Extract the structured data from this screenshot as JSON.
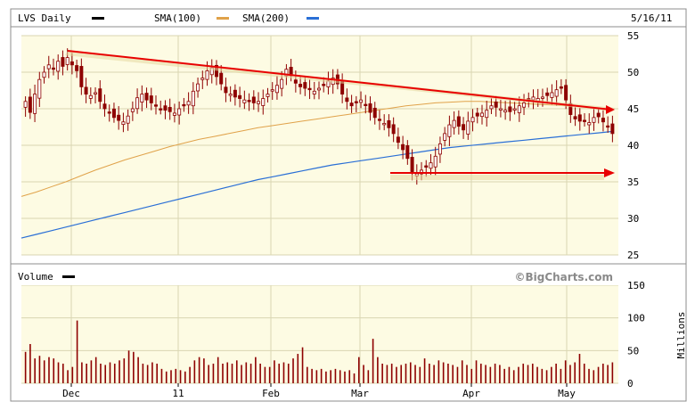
{
  "header": {
    "symbol": "LVS Daily",
    "sma100_label": "SMA(100)",
    "sma200_label": "SMA(200)",
    "date": "5/16/11"
  },
  "volume_panel": {
    "label": "Volume",
    "watermark": "©BigCharts.com",
    "unit_label": "Millions"
  },
  "colors": {
    "panel_bg": "#fdfbe3",
    "grid": "#d9d6b2",
    "candle": "#8e0000",
    "sma100": "#e0a24a",
    "sma200": "#2a6fd6",
    "trend": "#e80000",
    "volume": "#8e0000"
  },
  "chart_data": [
    {
      "type": "candlestick",
      "title": "LVS Daily",
      "x_tick_labels": [
        "Dec",
        "11",
        "Feb",
        "Mar",
        "Apr",
        "May"
      ],
      "ylim": [
        25,
        55
      ],
      "y_ticks": [
        25,
        30,
        35,
        40,
        45,
        50,
        55
      ],
      "grid": true,
      "closes": [
        46,
        44.5,
        47,
        49,
        50,
        51,
        50.5,
        51.5,
        50.8,
        52,
        51,
        50.2,
        48,
        47,
        46.8,
        47.2,
        46,
        45,
        44.5,
        43.8,
        43.4,
        43.2,
        44,
        45,
        46.5,
        47,
        46.2,
        45.8,
        45.5,
        45,
        44.8,
        44.6,
        44.4,
        45,
        45.4,
        46,
        47.4,
        48.4,
        49.2,
        50.2,
        50.6,
        49.4,
        48.4,
        47.2,
        47,
        46.6,
        46.4,
        46.2,
        46,
        45.8,
        46,
        46.4,
        47,
        47.6,
        48.2,
        49,
        50.4,
        49.5,
        48.5,
        48,
        47.8,
        47.6,
        47.4,
        47.8,
        48.3,
        48.8,
        49.2,
        48.4,
        47,
        46,
        45.4,
        45.8,
        46.2,
        45.6,
        44.5,
        43.8,
        43.4,
        43,
        42.4,
        41.6,
        40.4,
        39.4,
        38.2,
        36.4,
        36.1,
        36.6,
        37,
        37.6,
        38.5,
        40.2,
        41.6,
        42.8,
        43.4,
        42.6,
        42.1,
        43.3,
        43.8,
        44,
        44.4,
        44.8,
        45.4,
        45.2,
        45,
        44.8,
        44.6,
        45,
        45.4,
        45.8,
        46.2,
        46.6,
        46.4,
        46.6,
        46.8,
        47.2,
        47.6,
        47.8,
        46.2,
        44.2,
        43.6,
        43.3,
        43.4,
        43.1,
        43.8,
        43.9,
        43.2,
        42.6,
        41.6
      ],
      "series": [
        {
          "name": "SMA(100)",
          "values": [
            33,
            33.6,
            34.3,
            35,
            35.8,
            36.6,
            37.3,
            38,
            38.6,
            39.2,
            39.8,
            40.3,
            40.8,
            41.2,
            41.6,
            42,
            42.4,
            42.7,
            43,
            43.3,
            43.6,
            43.9,
            44.2,
            44.5,
            44.8,
            45.1,
            45.4,
            45.6,
            45.8,
            45.9,
            46,
            46,
            45.9,
            45.8,
            45.7,
            45.6,
            45.5,
            45.4,
            45.3,
            45.1,
            44.9
          ]
        },
        {
          "name": "SMA(200)",
          "values": [
            27.3,
            27.8,
            28.3,
            28.8,
            29.3,
            29.8,
            30.3,
            30.8,
            31.3,
            31.8,
            32.3,
            32.8,
            33.3,
            33.8,
            34.3,
            34.8,
            35.3,
            35.7,
            36.1,
            36.5,
            36.9,
            37.3,
            37.6,
            37.9,
            38.2,
            38.5,
            38.8,
            39.1,
            39.4,
            39.7,
            39.9,
            40.1,
            40.3,
            40.5,
            40.7,
            40.9,
            41.1,
            41.3,
            41.5,
            41.7,
            41.9
          ]
        }
      ]
    },
    {
      "type": "bar",
      "title": "Volume",
      "ylabel": "Millions",
      "ylim": [
        0,
        150
      ],
      "y_ticks": [
        0,
        50,
        100,
        150
      ],
      "values": [
        48,
        60,
        38,
        42,
        35,
        40,
        38,
        32,
        30,
        20,
        25,
        96,
        32,
        30,
        35,
        40,
        30,
        28,
        32,
        30,
        35,
        38,
        50,
        48,
        40,
        30,
        28,
        32,
        30,
        22,
        18,
        20,
        22,
        20,
        18,
        25,
        35,
        40,
        38,
        28,
        30,
        40,
        30,
        32,
        30,
        35,
        28,
        32,
        30,
        40,
        30,
        25,
        25,
        35,
        30,
        32,
        30,
        38,
        45,
        55,
        25,
        22,
        20,
        22,
        18,
        20,
        22,
        20,
        18,
        20,
        15,
        40,
        28,
        20,
        68,
        40,
        30,
        28,
        30,
        25,
        28,
        30,
        32,
        28,
        25,
        38,
        30,
        28,
        35,
        32,
        30,
        28,
        25,
        35,
        28,
        22,
        35,
        30,
        28,
        25,
        30,
        28,
        22,
        25,
        20,
        25,
        30,
        28,
        30,
        25,
        22,
        20,
        25,
        30,
        22,
        35,
        28,
        32,
        45,
        30,
        22,
        20,
        25,
        30,
        28,
        32
      ]
    }
  ]
}
